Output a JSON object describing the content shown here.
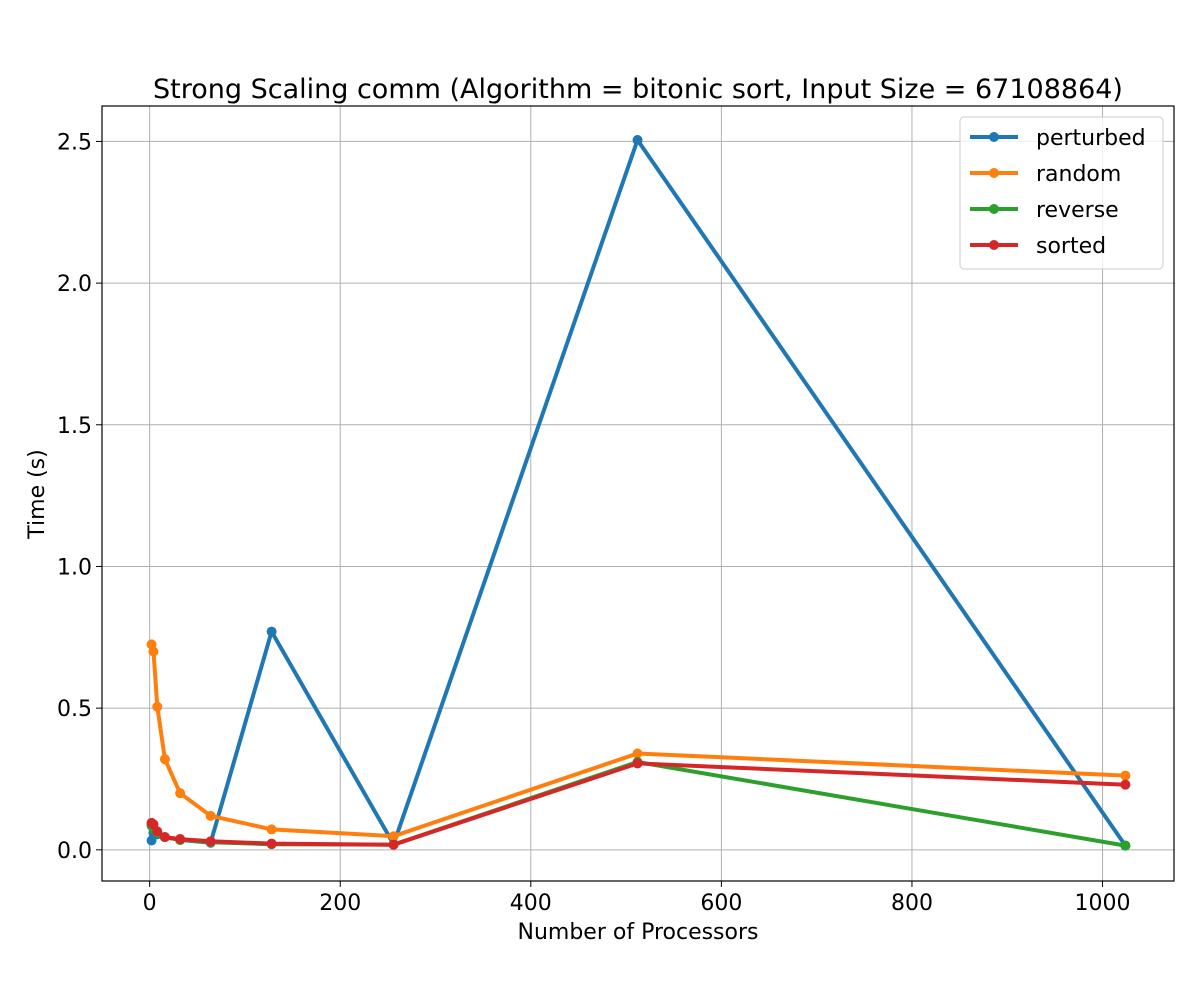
{
  "chart_data": {
    "type": "line",
    "title": "Strong Scaling comm (Algorithm = bitonic sort, Input Size = 67108864)",
    "xlabel": "Number of Processors",
    "ylabel": "Time (s)",
    "xlim": [
      -50,
      1075
    ],
    "ylim": [
      -0.11,
      2.625
    ],
    "xticks": [
      0,
      200,
      400,
      600,
      800,
      1000
    ],
    "xtick_labels": [
      "0",
      "200",
      "400",
      "600",
      "800",
      "1000"
    ],
    "yticks": [
      0.0,
      0.5,
      1.0,
      1.5,
      2.0,
      2.5
    ],
    "ytick_labels": [
      "0.0",
      "0.5",
      "1.0",
      "1.5",
      "2.0",
      "2.5"
    ],
    "grid": true,
    "legend_position": "top-right",
    "series": [
      {
        "name": "perturbed",
        "color": "#1f77b4",
        "x": [
          2,
          4,
          8,
          16,
          32,
          64,
          128,
          256,
          512,
          1024
        ],
        "y": [
          0.033,
          0.06,
          0.055,
          0.045,
          0.035,
          0.025,
          0.77,
          0.02,
          2.505,
          0.015
        ]
      },
      {
        "name": "random",
        "color": "#ff7f0e",
        "x": [
          2,
          4,
          8,
          16,
          32,
          64,
          128,
          256,
          512,
          1024
        ],
        "y": [
          0.725,
          0.7,
          0.505,
          0.32,
          0.2,
          0.12,
          0.072,
          0.048,
          0.34,
          0.262
        ]
      },
      {
        "name": "reverse",
        "color": "#2ca02c",
        "x": [
          2,
          4,
          8,
          16,
          32,
          64,
          128,
          256,
          512,
          1024
        ],
        "y": [
          0.085,
          0.075,
          0.06,
          0.045,
          0.035,
          0.027,
          0.02,
          0.018,
          0.31,
          0.015
        ]
      },
      {
        "name": "sorted",
        "color": "#d62728",
        "x": [
          2,
          4,
          8,
          16,
          32,
          64,
          128,
          256,
          512,
          1024
        ],
        "y": [
          0.095,
          0.09,
          0.065,
          0.045,
          0.038,
          0.03,
          0.022,
          0.018,
          0.305,
          0.23
        ]
      }
    ]
  }
}
